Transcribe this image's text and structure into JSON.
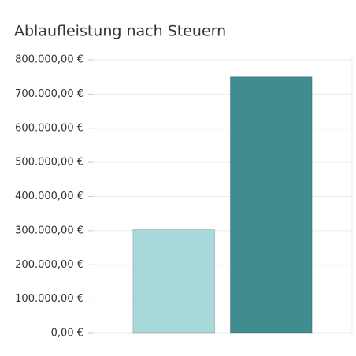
{
  "chart_data": {
    "type": "bar",
    "title": "Ablaufleistung nach Steuern",
    "categories": [
      null,
      null
    ],
    "values": [
      303000,
      750000
    ],
    "colors": [
      "#a8d8d9",
      "#408d90"
    ],
    "ylim": [
      0,
      800000
    ],
    "yticks": [
      {
        "value": 0,
        "label": "0,00 €"
      },
      {
        "value": 100000,
        "label": "100.000,00 €"
      },
      {
        "value": 200000,
        "label": "200.000,00 €"
      },
      {
        "value": 300000,
        "label": "300.000,00 €"
      },
      {
        "value": 400000,
        "label": "400.000,00 €"
      },
      {
        "value": 500000,
        "label": "500.000,00 €"
      },
      {
        "value": 600000,
        "label": "600.000,00 €"
      },
      {
        "value": 700000,
        "label": "700.000,00 €"
      },
      {
        "value": 800000,
        "label": "800.000,00 €"
      }
    ],
    "grid": true
  }
}
